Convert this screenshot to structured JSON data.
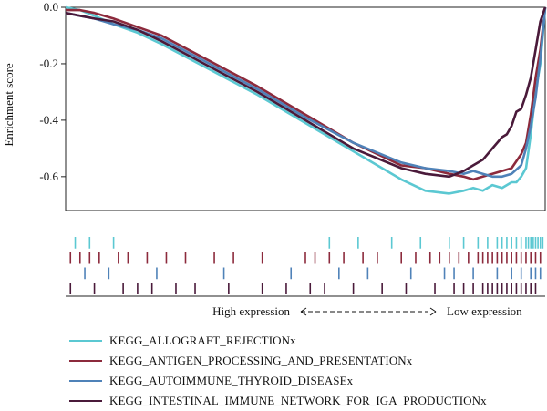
{
  "chart_data": {
    "type": "line",
    "title": "",
    "ylabel": "Enrichment score",
    "xlabel_left": "High expression",
    "xlabel_right": "Low expression",
    "xlim": [
      0,
      1
    ],
    "ylim": [
      -0.72,
      0.0
    ],
    "y_ticks": [
      "0.0",
      "-0.2",
      "-0.4",
      "-0.6"
    ],
    "y_tick_values": [
      0.0,
      -0.2,
      -0.4,
      -0.6
    ],
    "legend_position": "bottom-left",
    "series": [
      {
        "name": "KEGG_ALLOGRAFT_REJECTIONx",
        "color": "#5bc8d2",
        "x": [
          0.0,
          0.03,
          0.06,
          0.1,
          0.15,
          0.2,
          0.3,
          0.4,
          0.5,
          0.6,
          0.7,
          0.75,
          0.8,
          0.83,
          0.85,
          0.87,
          0.89,
          0.91,
          0.93,
          0.94,
          0.95,
          0.96,
          0.97,
          0.98,
          0.99,
          1.0
        ],
        "values": [
          0.0,
          -0.01,
          -0.03,
          -0.06,
          -0.09,
          -0.13,
          -0.22,
          -0.31,
          -0.41,
          -0.51,
          -0.61,
          -0.65,
          -0.66,
          -0.65,
          -0.64,
          -0.65,
          -0.63,
          -0.64,
          -0.62,
          -0.62,
          -0.6,
          -0.57,
          -0.45,
          -0.3,
          -0.2,
          0.0
        ]
      },
      {
        "name": "KEGG_ANTIGEN_PROCESSING_AND_PRESENTATIONx",
        "color": "#8c2a3c",
        "x": [
          0.0,
          0.03,
          0.06,
          0.1,
          0.15,
          0.2,
          0.3,
          0.4,
          0.5,
          0.6,
          0.7,
          0.75,
          0.8,
          0.83,
          0.85,
          0.87,
          0.89,
          0.91,
          0.93,
          0.95,
          0.96,
          0.97,
          0.98,
          0.99,
          1.0
        ],
        "values": [
          -0.01,
          -0.01,
          -0.02,
          -0.04,
          -0.07,
          -0.1,
          -0.19,
          -0.28,
          -0.38,
          -0.48,
          -0.56,
          -0.57,
          -0.59,
          -0.6,
          -0.61,
          -0.6,
          -0.59,
          -0.58,
          -0.57,
          -0.52,
          -0.48,
          -0.38,
          -0.25,
          -0.15,
          0.0
        ]
      },
      {
        "name": "KEGG_AUTOIMMUNE_THYROID_DISEASEx",
        "color": "#4f82b8",
        "x": [
          0.0,
          0.03,
          0.06,
          0.1,
          0.15,
          0.2,
          0.3,
          0.4,
          0.5,
          0.6,
          0.7,
          0.75,
          0.8,
          0.83,
          0.85,
          0.87,
          0.89,
          0.91,
          0.93,
          0.95,
          0.96,
          0.97,
          0.98,
          0.99,
          1.0
        ],
        "values": [
          -0.02,
          -0.03,
          -0.04,
          -0.06,
          -0.08,
          -0.11,
          -0.2,
          -0.29,
          -0.39,
          -0.48,
          -0.55,
          -0.57,
          -0.58,
          -0.59,
          -0.58,
          -0.59,
          -0.6,
          -0.6,
          -0.59,
          -0.56,
          -0.5,
          -0.42,
          -0.32,
          -0.18,
          0.0
        ]
      },
      {
        "name": "KEGG_INTESTINAL_IMMUNE_NETWORK_FOR_IGA_PRODUCTIONx",
        "color": "#4a1a3a",
        "x": [
          0.0,
          0.03,
          0.06,
          0.1,
          0.15,
          0.2,
          0.3,
          0.4,
          0.5,
          0.6,
          0.7,
          0.75,
          0.8,
          0.83,
          0.85,
          0.87,
          0.89,
          0.91,
          0.92,
          0.93,
          0.94,
          0.95,
          0.96,
          0.97,
          0.98,
          0.99,
          1.0
        ],
        "values": [
          -0.02,
          -0.03,
          -0.04,
          -0.05,
          -0.08,
          -0.12,
          -0.21,
          -0.3,
          -0.4,
          -0.5,
          -0.57,
          -0.59,
          -0.6,
          -0.58,
          -0.56,
          -0.54,
          -0.5,
          -0.46,
          -0.45,
          -0.42,
          -0.37,
          -0.36,
          -0.31,
          -0.25,
          -0.15,
          -0.05,
          0.0
        ]
      }
    ],
    "hits": {
      "KEGG_ALLOGRAFT_REJECTIONx": [
        0.02,
        0.05,
        0.1,
        0.55,
        0.61,
        0.68,
        0.74,
        0.8,
        0.83,
        0.86,
        0.88,
        0.9,
        0.91,
        0.92,
        0.93,
        0.94,
        0.95,
        0.96,
        0.965,
        0.97,
        0.975,
        0.98,
        0.985,
        0.99,
        0.995
      ],
      "KEGG_ANTIGEN_PROCESSING_AND_PRESENTATIONx": [
        0.01,
        0.03,
        0.05,
        0.07,
        0.11,
        0.13,
        0.17,
        0.21,
        0.25,
        0.31,
        0.35,
        0.41,
        0.5,
        0.52,
        0.55,
        0.58,
        0.62,
        0.65,
        0.7,
        0.73,
        0.76,
        0.78,
        0.8,
        0.82,
        0.84,
        0.86,
        0.87,
        0.88,
        0.89,
        0.9,
        0.91,
        0.92,
        0.93,
        0.94,
        0.95,
        0.96,
        0.97,
        0.98,
        0.99
      ],
      "KEGG_AUTOIMMUNE_THYROID_DISEASEx": [
        0.04,
        0.09,
        0.19,
        0.33,
        0.47,
        0.57,
        0.63,
        0.72,
        0.79,
        0.81,
        0.85,
        0.9,
        0.93,
        0.95,
        0.97,
        0.98,
        0.99
      ],
      "KEGG_INTESTINAL_IMMUNE_NETWORK_FOR_IGA_PRODUCTIONx": [
        0.01,
        0.06,
        0.12,
        0.15,
        0.18,
        0.23,
        0.27,
        0.34,
        0.41,
        0.46,
        0.51,
        0.54,
        0.6,
        0.66,
        0.71,
        0.77,
        0.81,
        0.83,
        0.85,
        0.87,
        0.88,
        0.89,
        0.9,
        0.91,
        0.92,
        0.93,
        0.94,
        0.95,
        0.96,
        0.97,
        0.98
      ]
    }
  }
}
